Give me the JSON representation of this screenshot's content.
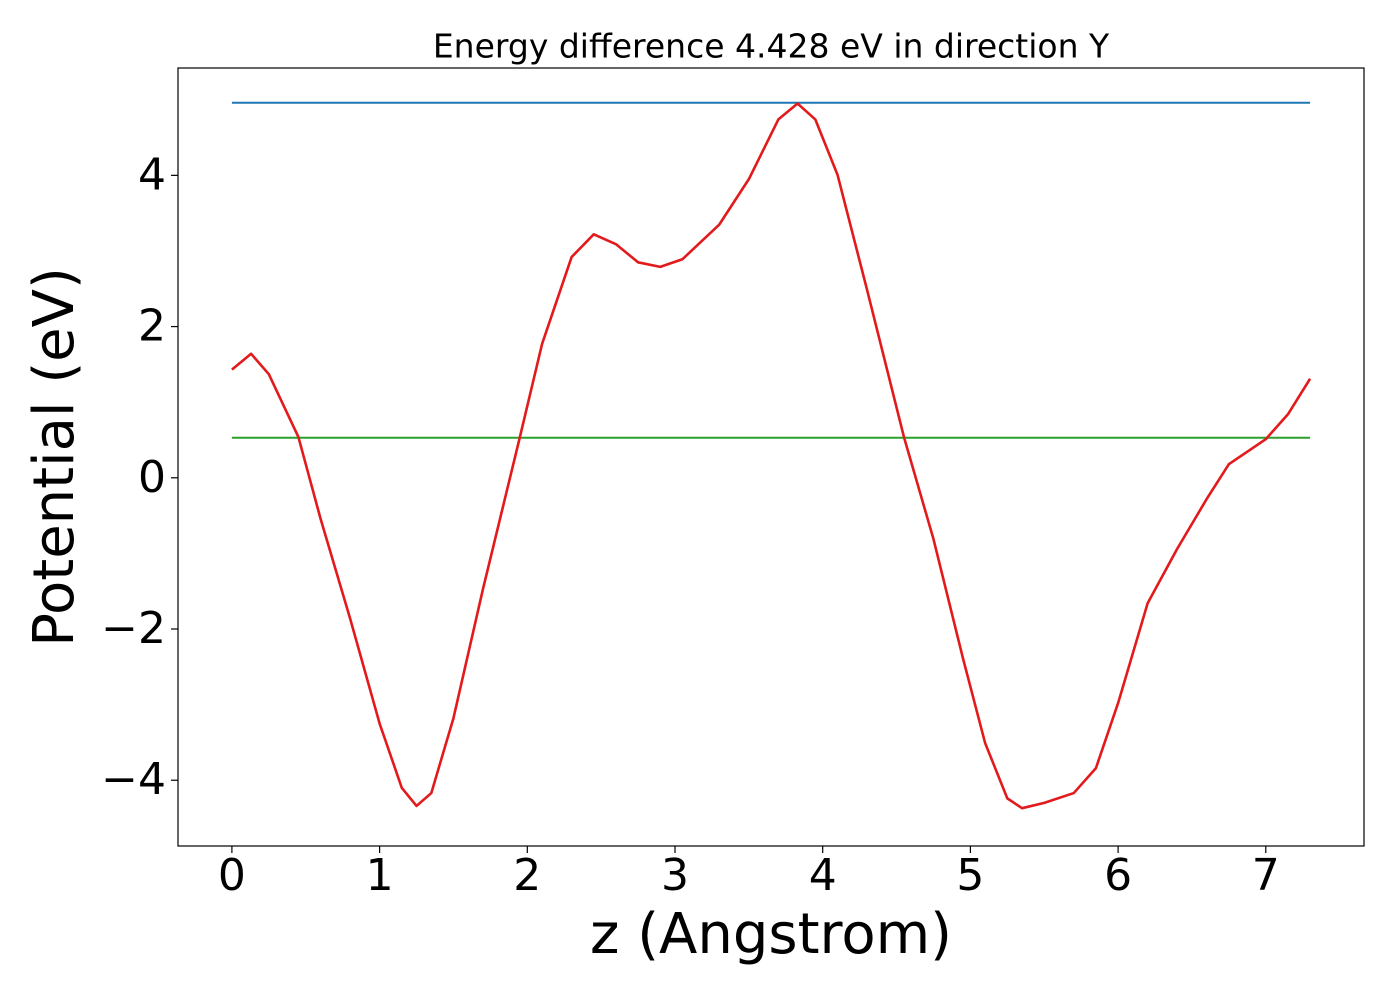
{
  "chart_data": {
    "type": "line",
    "title": "Energy difference 4.428 eV in direction Y",
    "xlabel": "z (Angstrom)",
    "ylabel": "Potential (eV)",
    "xlim": [
      -0.365,
      7.665
    ],
    "ylim": [
      -4.87,
      5.42
    ],
    "xticks": [
      0,
      1,
      2,
      3,
      4,
      5,
      6,
      7
    ],
    "yticks": [
      {
        "value": -4,
        "label": "−4"
      },
      {
        "value": -2,
        "label": "−2"
      },
      0,
      2,
      4
    ],
    "grid": false,
    "series": [
      {
        "color": "#1f77b4",
        "x": [
          0,
          7.3
        ],
        "values": [
          4.96,
          4.96
        ]
      },
      {
        "color": "#2ca02c",
        "x": [
          0,
          7.3
        ],
        "values": [
          0.53,
          0.53
        ]
      },
      {
        "color": "#e31a1c",
        "x": [
          0,
          0.13,
          0.25,
          0.45,
          0.6,
          0.8,
          1.0,
          1.15,
          1.25,
          1.35,
          1.5,
          1.7,
          1.95,
          2.1,
          2.3,
          2.45,
          2.6,
          2.75,
          2.9,
          3.05,
          3.3,
          3.5,
          3.7,
          3.83,
          3.95,
          4.1,
          4.3,
          4.55,
          4.75,
          4.95,
          5.1,
          5.25,
          5.35,
          5.5,
          5.7,
          5.85,
          6.0,
          6.2,
          6.4,
          6.6,
          6.75,
          7.0,
          7.15,
          7.3
        ],
        "values": [
          1.43,
          1.64,
          1.37,
          0.54,
          -0.54,
          -1.86,
          -3.25,
          -4.1,
          -4.34,
          -4.17,
          -3.18,
          -1.47,
          0.54,
          1.77,
          2.92,
          3.22,
          3.09,
          2.85,
          2.79,
          2.89,
          3.35,
          3.95,
          4.74,
          4.95,
          4.74,
          4.01,
          2.49,
          0.54,
          -0.81,
          -2.39,
          -3.51,
          -4.24,
          -4.37,
          -4.3,
          -4.17,
          -3.84,
          -2.98,
          -1.66,
          -0.94,
          -0.28,
          0.18,
          0.51,
          0.84,
          1.31
        ]
      }
    ]
  }
}
